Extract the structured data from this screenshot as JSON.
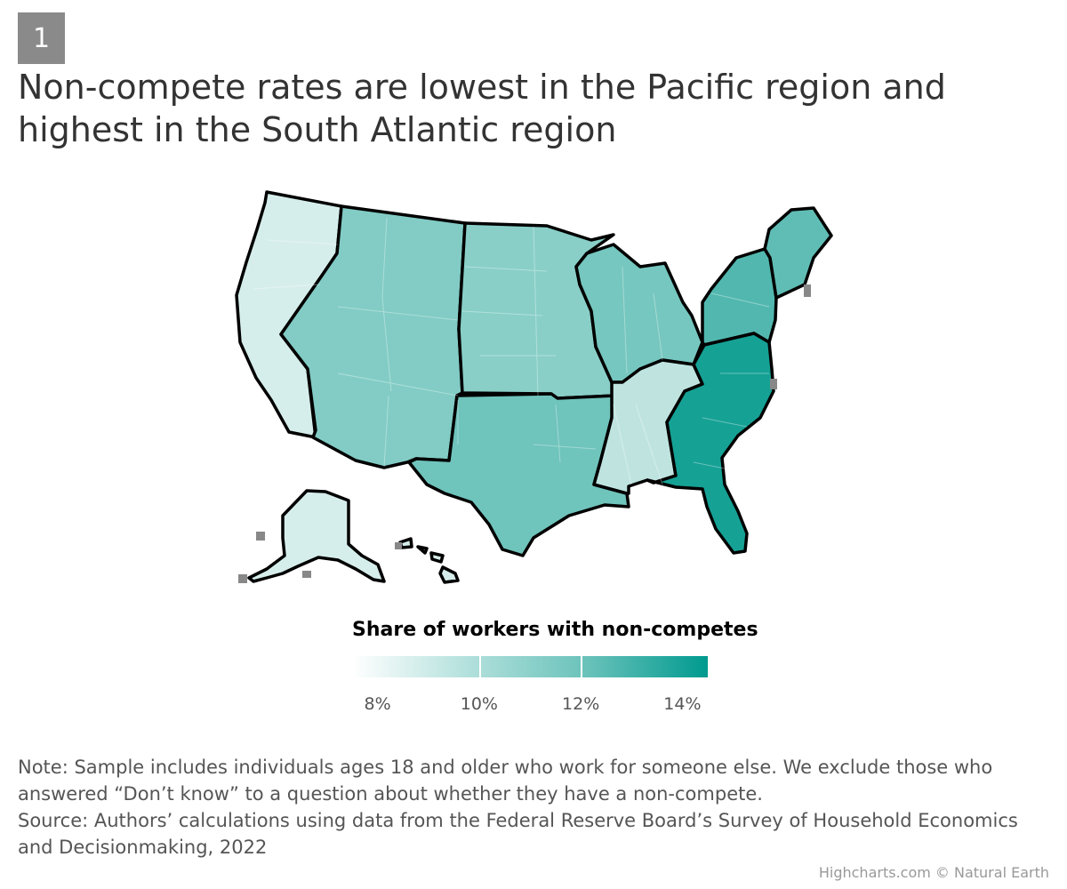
{
  "badge": "1",
  "title": "Non-compete rates are lowest in the Pacific region and highest in the South Atlantic region",
  "legend": {
    "title": "Share of workers with non-competes",
    "min": 7.5,
    "max": 14.5,
    "labels": [
      "8%",
      "10%",
      "12%",
      "14%"
    ],
    "label_values": [
      8,
      10,
      12,
      14
    ],
    "colors": [
      "#ffffff",
      "#b2e0dc",
      "#67c1b9",
      "#009a8f"
    ]
  },
  "regions": [
    {
      "name": "Pacific",
      "color": "#d6eeeb"
    },
    {
      "name": "Mountain",
      "color": "#82ccc5"
    },
    {
      "name": "West North Central",
      "color": "#89cfc8"
    },
    {
      "name": "West South Central",
      "color": "#6fc4bc"
    },
    {
      "name": "East North Central",
      "color": "#76c7bf"
    },
    {
      "name": "East South Central",
      "color": "#bfe4e0"
    },
    {
      "name": "Middle Atlantic",
      "color": "#52b8af"
    },
    {
      "name": "New England",
      "color": "#60bdb5"
    },
    {
      "name": "South Atlantic",
      "color": "#16a195"
    }
  ],
  "notes": [
    "Note: Sample includes individuals ages 18 and older who work for someone else. We exclude those who",
    "answered “Don’t know” to a question about whether they have a non-compete.",
    "Source: Authors’ calculations using data from the Federal Reserve Board’s Survey of Household Economics",
    "and Decisionmaking, 2022"
  ],
  "credit": "Highcharts.com © Natural Earth"
}
